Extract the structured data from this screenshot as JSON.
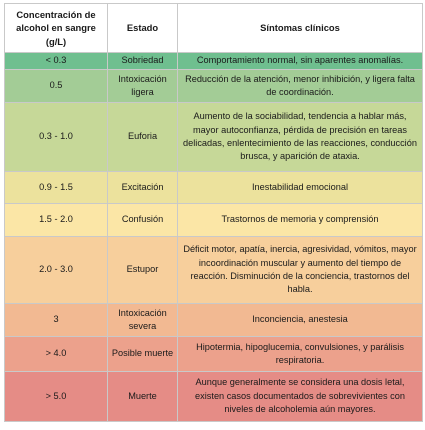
{
  "headers": [
    "Concentración de alcohol en sangre (g/L)",
    "Estado",
    "Síntomas clínicos"
  ],
  "rows": [
    {
      "concentration": "< 0.3",
      "state": "Sobriedad",
      "symptoms": "Comportamiento normal, sin aparentes anomalías.",
      "color": "#6fbf8f"
    },
    {
      "concentration": "0.5",
      "state": "Intoxicación ligera",
      "symptoms": "Reducción de la atención, menor inhibición, y ligera falta de coordinación.",
      "color": "#a3cc96"
    },
    {
      "concentration": "0.3 - 1.0",
      "state": "Euforia",
      "symptoms": "Aumento de la sociabilidad, tendencia a hablar más, mayor autoconfianza, pérdida de precisión en tareas delicadas, enlentecimiento de las reacciones, conducción brusca, y aparición de ataxia.",
      "color": "#c6d898"
    },
    {
      "concentration": "0.9 - 1.5",
      "state": "Excitación",
      "symptoms": "Inestabilidad emocional",
      "color": "#ece29d"
    },
    {
      "concentration": "1.5 - 2.0",
      "state": "Confusión",
      "symptoms": "Trastornos de memoria y comprensión",
      "color": "#fbe6a6"
    },
    {
      "concentration": "2.0 - 3.0",
      "state": "Estupor",
      "symptoms": "Déficit motor, apatía, inercia, agresividad, vómitos, mayor incoordinación muscular y aumento del tiempo de reacción. Disminución de la conciencia, trastornos del habla.",
      "color": "#f7cf9c"
    },
    {
      "concentration": "3",
      "state": "Intoxicación severa",
      "symptoms": "Inconciencia, anestesia",
      "color": "#f2b992"
    },
    {
      "concentration": "> 4.0",
      "state": "Posible muerte",
      "symptoms": "Hipotermia, hipoglucemia, convulsiones, y parálisis respiratoria.",
      "color": "#eca18c"
    },
    {
      "concentration": "> 5.0",
      "state": "Muerte",
      "symptoms": "Aunque generalmente se considera una dosis letal, existen casos documentados de sobrevivientes con niveles de alcoholemia aún mayores.",
      "color": "#e58c86"
    }
  ]
}
